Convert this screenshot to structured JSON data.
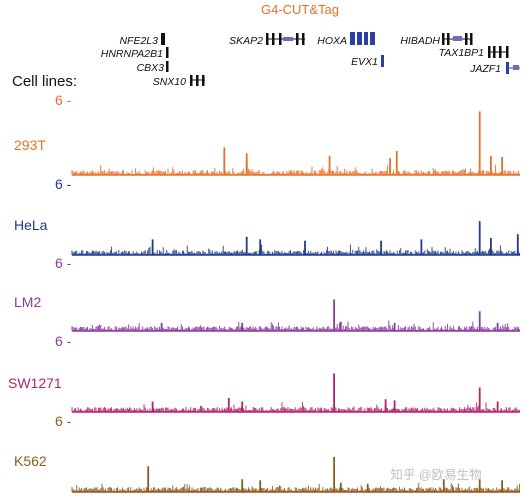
{
  "colors": {
    "orange": "#e8702a",
    "navy": "#1f3a8a",
    "purple": "#8a3aa0",
    "magenta": "#b0246e",
    "brown": "#8b5a1e",
    "gene_dark": "#111111",
    "gene_blue": "#2b3fa8"
  },
  "chart_data": {
    "type": "area",
    "title": "G4-CUT&Tag",
    "row_header": "Cell lines:",
    "watermark": "知乎 @欧易生物",
    "genes": [
      {
        "name": "NFE2L3",
        "track": 0
      },
      {
        "name": "HNRNPA2B1",
        "track": 1
      },
      {
        "name": "CBX3",
        "track": 2
      },
      {
        "name": "SNX10",
        "track": 3
      },
      {
        "name": "SKAP2",
        "track": 0
      },
      {
        "name": "HOXA",
        "track": 0
      },
      {
        "name": "EVX1",
        "track": 1
      },
      {
        "name": "HIBADH",
        "track": 0
      },
      {
        "name": "TAX1BP1",
        "track": 1
      },
      {
        "name": "JAZF1",
        "track": 2
      }
    ],
    "ylim": [
      0,
      6
    ],
    "tracks": [
      {
        "name": "293T",
        "scale_label": "6 -",
        "color": "#e8702a",
        "peaks": [
          {
            "x": 0.34,
            "v": 2.3
          },
          {
            "x": 0.39,
            "v": 1.8
          },
          {
            "x": 0.39,
            "v": 1.2
          },
          {
            "x": 0.575,
            "v": 1.6
          },
          {
            "x": 0.71,
            "v": 1.4
          },
          {
            "x": 0.725,
            "v": 2.0
          },
          {
            "x": 0.91,
            "v": 5.3
          },
          {
            "x": 0.935,
            "v": 1.6
          },
          {
            "x": 0.96,
            "v": 1.5
          }
        ]
      },
      {
        "name": "HeLa",
        "scale_label": "6 -",
        "color": "#1f3a8a",
        "peaks": [
          {
            "x": 0.18,
            "v": 1.2
          },
          {
            "x": 0.39,
            "v": 1.4
          },
          {
            "x": 0.42,
            "v": 1.2
          },
          {
            "x": 0.52,
            "v": 1.1
          },
          {
            "x": 0.69,
            "v": 1.1
          },
          {
            "x": 0.78,
            "v": 1.2
          },
          {
            "x": 0.91,
            "v": 2.6
          },
          {
            "x": 0.935,
            "v": 1.3
          },
          {
            "x": 0.995,
            "v": 1.6
          }
        ]
      },
      {
        "name": "LM2",
        "scale_label": "6 -",
        "color": "#8a3aa0",
        "peaks": [
          {
            "x": 0.2,
            "v": 0.7
          },
          {
            "x": 0.38,
            "v": 0.7
          },
          {
            "x": 0.585,
            "v": 2.7
          },
          {
            "x": 0.6,
            "v": 0.8
          },
          {
            "x": 0.72,
            "v": 0.7
          },
          {
            "x": 0.91,
            "v": 1.7
          },
          {
            "x": 0.95,
            "v": 0.7
          }
        ]
      },
      {
        "name": "SW1271",
        "scale_label": "6 -",
        "color": "#b0246e",
        "peaks": [
          {
            "x": 0.18,
            "v": 0.9
          },
          {
            "x": 0.35,
            "v": 1.2
          },
          {
            "x": 0.38,
            "v": 0.9
          },
          {
            "x": 0.585,
            "v": 3.3
          },
          {
            "x": 0.7,
            "v": 1.1
          },
          {
            "x": 0.72,
            "v": 1.0
          },
          {
            "x": 0.91,
            "v": 2.1
          },
          {
            "x": 0.95,
            "v": 0.9
          }
        ]
      },
      {
        "name": "K562",
        "scale_label": "6 -",
        "color": "#8b5a1e",
        "peaks": [
          {
            "x": 0.17,
            "v": 2.2
          },
          {
            "x": 0.38,
            "v": 1.1
          },
          {
            "x": 0.42,
            "v": 1.0
          },
          {
            "x": 0.585,
            "v": 3.0
          },
          {
            "x": 0.6,
            "v": 0.8
          },
          {
            "x": 0.66,
            "v": 0.7
          },
          {
            "x": 0.83,
            "v": 1.1
          },
          {
            "x": 0.91,
            "v": 1.1
          },
          {
            "x": 0.96,
            "v": 1.0
          }
        ]
      }
    ]
  }
}
